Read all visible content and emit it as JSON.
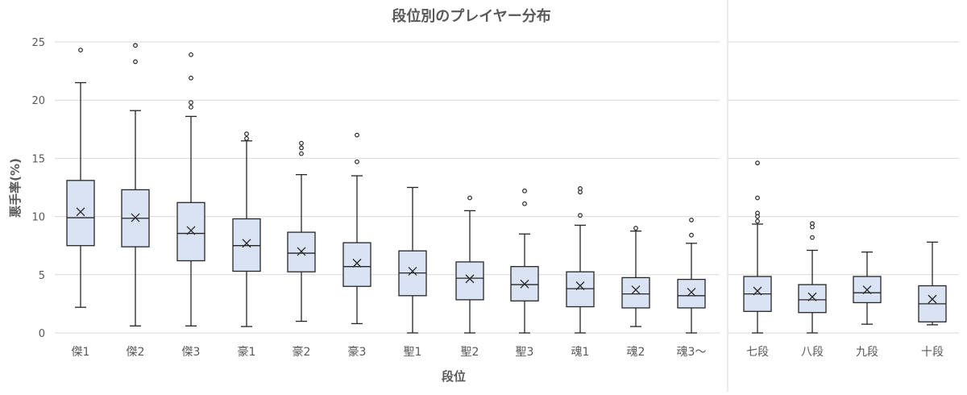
{
  "chart_data": {
    "type": "box",
    "title": "段位別のプレイヤー分布",
    "xlabel": "段位",
    "ylabel": "悪手率(%)",
    "ylim": [
      0,
      25
    ],
    "yticks": [
      0,
      5,
      10,
      15,
      20,
      25
    ],
    "grid": true,
    "colors": {
      "box_fill": "#dae3f3",
      "stroke": "#262626",
      "grid": "#d9d9d9",
      "text": "#595959"
    },
    "panels": [
      {
        "categories": [
          "傑1",
          "傑2",
          "傑3",
          "豪1",
          "豪2",
          "豪3",
          "聖1",
          "聖2",
          "聖3",
          "魂1",
          "魂2",
          "魂3〜"
        ],
        "boxes": [
          {
            "min": 2.2,
            "q1": 7.5,
            "median": 9.9,
            "q3": 13.1,
            "max": 21.5,
            "mean": 10.4,
            "outliers": [
              24.3
            ]
          },
          {
            "min": 0.6,
            "q1": 7.4,
            "median": 9.85,
            "q3": 12.3,
            "max": 19.1,
            "mean": 9.9,
            "outliers": [
              24.7,
              23.3
            ]
          },
          {
            "min": 0.6,
            "q1": 6.2,
            "median": 8.55,
            "q3": 11.2,
            "max": 18.6,
            "mean": 8.8,
            "outliers": [
              23.9,
              21.9,
              19.8,
              19.4
            ]
          },
          {
            "min": 0.55,
            "q1": 5.3,
            "median": 7.5,
            "q3": 9.8,
            "max": 16.5,
            "mean": 7.7,
            "outliers": [
              17.1,
              16.7
            ]
          },
          {
            "min": 1.0,
            "q1": 5.25,
            "median": 6.85,
            "q3": 8.65,
            "max": 13.6,
            "mean": 7.0,
            "outliers": [
              16.3,
              15.9,
              15.4
            ]
          },
          {
            "min": 0.8,
            "q1": 4.0,
            "median": 5.7,
            "q3": 7.75,
            "max": 13.5,
            "mean": 6.0,
            "outliers": [
              17.0,
              14.7
            ]
          },
          {
            "min": 0,
            "q1": 3.2,
            "median": 5.15,
            "q3": 7.05,
            "max": 12.5,
            "mean": 5.3,
            "outliers": []
          },
          {
            "min": 0,
            "q1": 2.85,
            "median": 4.7,
            "q3": 6.1,
            "max": 10.5,
            "mean": 4.65,
            "outliers": [
              11.6
            ]
          },
          {
            "min": 0,
            "q1": 2.75,
            "median": 4.15,
            "q3": 5.7,
            "max": 8.5,
            "mean": 4.2,
            "outliers": [
              12.2,
              11.1
            ]
          },
          {
            "min": 0,
            "q1": 2.25,
            "median": 3.8,
            "q3": 5.25,
            "max": 9.25,
            "mean": 4.05,
            "outliers": [
              12.4,
              12.1,
              10.1
            ]
          },
          {
            "min": 0.55,
            "q1": 2.15,
            "median": 3.35,
            "q3": 4.75,
            "max": 8.75,
            "mean": 3.7,
            "outliers": [
              9.0
            ]
          },
          {
            "min": 0,
            "q1": 2.15,
            "median": 3.2,
            "q3": 4.6,
            "max": 7.7,
            "mean": 3.5,
            "outliers": [
              9.7,
              8.4
            ]
          }
        ]
      },
      {
        "categories": [
          "七段",
          "八段",
          "九段",
          "十段"
        ],
        "boxes": [
          {
            "min": 0,
            "q1": 1.85,
            "median": 3.35,
            "q3": 4.85,
            "max": 9.35,
            "mean": 3.6,
            "outliers": [
              14.6,
              11.6,
              10.3,
              10.0,
              9.6
            ]
          },
          {
            "min": 0,
            "q1": 1.75,
            "median": 2.85,
            "q3": 4.15,
            "max": 7.1,
            "mean": 3.1,
            "outliers": [
              9.4,
              9.1,
              8.2
            ]
          },
          {
            "min": 0.75,
            "q1": 2.6,
            "median": 3.45,
            "q3": 4.85,
            "max": 6.95,
            "mean": 3.7,
            "outliers": []
          },
          {
            "min": 0.7,
            "q1": 0.95,
            "median": 2.5,
            "q3": 4.05,
            "max": 7.8,
            "mean": 2.9,
            "outliers": []
          }
        ]
      }
    ]
  }
}
